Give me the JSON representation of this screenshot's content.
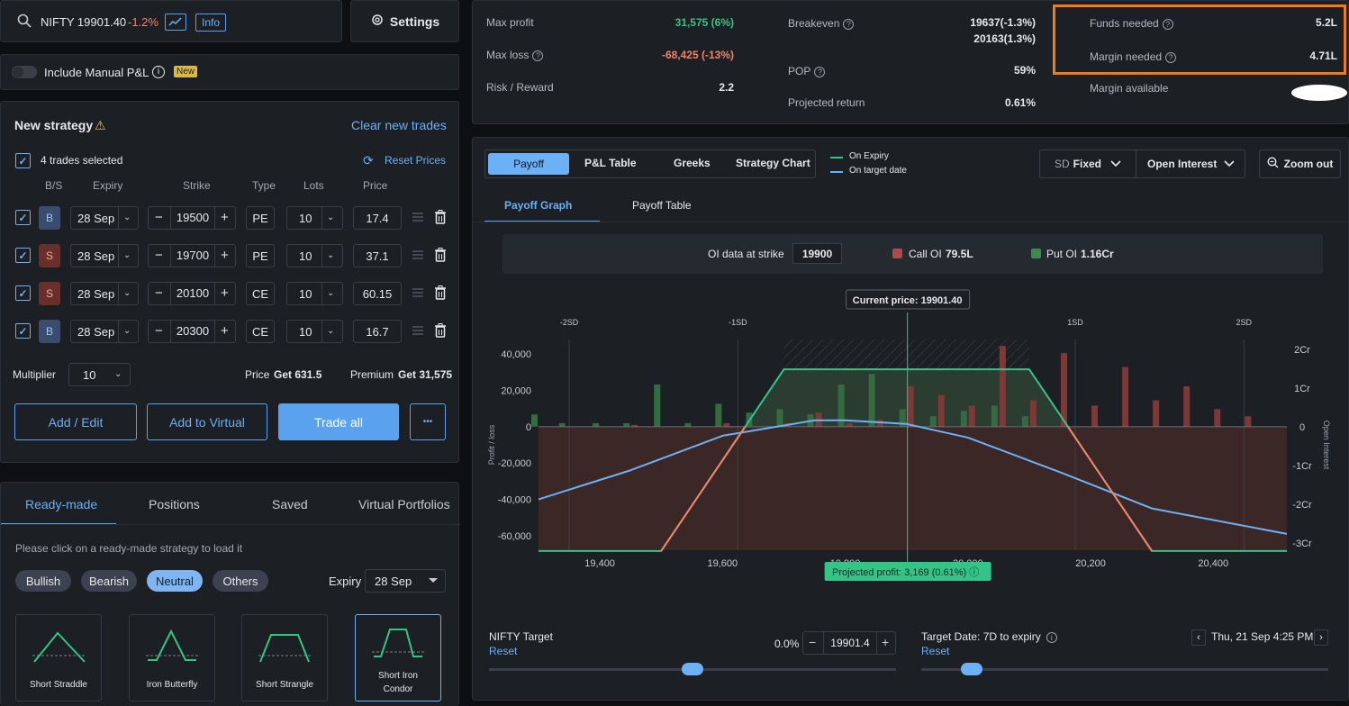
{
  "search": {
    "symbol": "NIFTY 19901.40",
    "change": "-1.2%",
    "info": "Info"
  },
  "settings": {
    "label": "Settings"
  },
  "manual_pl": {
    "label": "Include Manual P&L",
    "badge": "New"
  },
  "strategy": {
    "title": "New strategy",
    "clear": "Clear new trades",
    "selected": "4 trades selected",
    "reset_prices": "Reset Prices",
    "headers": [
      "B/S",
      "Expiry",
      "Strike",
      "Type",
      "Lots",
      "Price"
    ],
    "trades": [
      {
        "bs": "B",
        "expiry": "28 Sep",
        "strike": "19500",
        "type": "PE",
        "lots": "10",
        "price": "17.4"
      },
      {
        "bs": "S",
        "expiry": "28 Sep",
        "strike": "19700",
        "type": "PE",
        "lots": "10",
        "price": "37.1"
      },
      {
        "bs": "S",
        "expiry": "28 Sep",
        "strike": "20100",
        "type": "CE",
        "lots": "10",
        "price": "60.15"
      },
      {
        "bs": "B",
        "expiry": "28 Sep",
        "strike": "20300",
        "type": "CE",
        "lots": "10",
        "price": "16.7"
      }
    ],
    "multiplier_label": "Multiplier",
    "multiplier": "10",
    "price_label": "Price",
    "price_val": "Get 631.5",
    "premium_label": "Premium",
    "premium_val": "Get 31,575",
    "add_edit": "Add / Edit",
    "add_virtual": "Add to Virtual",
    "trade_all": "Trade all",
    "more": "•••"
  },
  "library": {
    "tabs": [
      "Ready-made",
      "Positions",
      "Saved",
      "Virtual Portfolios"
    ],
    "hint": "Please click on a ready-made strategy to load it",
    "chips": [
      "Bullish",
      "Bearish",
      "Neutral",
      "Others"
    ],
    "expiry_label": "Expiry",
    "expiry": "28 Sep",
    "cards": [
      "Short Straddle",
      "Iron Butterfly",
      "Short Strangle",
      "Short Iron Condor"
    ]
  },
  "summary": {
    "max_profit_label": "Max profit",
    "max_profit": "31,575 (6%)",
    "max_loss_label": "Max loss",
    "max_loss": "-68,425 (-13%)",
    "rr_label": "Risk / Reward",
    "rr": "2.2",
    "breakeven_label": "Breakeven",
    "breakeven1": "19637(-1.3%)",
    "breakeven2": "20163(1.3%)",
    "pop_label": "POP",
    "pop": "59%",
    "proj_label": "Projected return",
    "proj": "0.61%",
    "funds_label": "Funds needed",
    "funds": "5.2L",
    "margin_label": "Margin needed",
    "margin": "4.71L",
    "margin_avail_label": "Margin available"
  },
  "chart_tabs": {
    "tabs": [
      "Payoff",
      "P&L Table",
      "Greeks",
      "Strategy Chart"
    ],
    "legend_expiry": "On Expiry",
    "legend_target": "On target date",
    "sd": "SD",
    "sd_mode": "Fixed",
    "oi": "Open Interest",
    "zoom": "Zoom out",
    "sub_tabs": [
      "Payoff Graph",
      "Payoff Table"
    ]
  },
  "oi_bar": {
    "label": "OI data at strike",
    "strike": "19900",
    "call_label": "Call OI",
    "call": "79.5L",
    "put_label": "Put OI",
    "put": "1.16Cr"
  },
  "chart_data": {
    "type": "line",
    "current_price": "Current price: 19901.40",
    "xlim": [
      19300,
      20520
    ],
    "ylim": [
      -68000,
      48000
    ],
    "x_ticks": [
      "19,400",
      "19,600",
      "19,800",
      "20,000",
      "20,200",
      "20,400"
    ],
    "y_ticks": [
      "40,000",
      "20,000",
      "0",
      "-20,000",
      "-40,000",
      "-60,000"
    ],
    "y2_ticks": [
      "2Cr",
      "1Cr",
      "0",
      "-1Cr",
      "-2Cr",
      "-3Cr"
    ],
    "sd_labels": [
      "-2SD",
      "-1SD",
      "1SD",
      "2SD"
    ],
    "ylabel": "Profit / loss",
    "y2label": "Open Interest",
    "series": [
      {
        "name": "On Expiry",
        "x": [
          19300,
          19500,
          19700,
          20100,
          20300,
          20520
        ],
        "y": [
          -68425,
          -68425,
          31575,
          31575,
          -68425,
          -68425
        ]
      },
      {
        "name": "On target date",
        "x": [
          19300,
          19450,
          19600,
          19750,
          19800,
          19900,
          20000,
          20150,
          20300,
          20520
        ],
        "y": [
          -40000,
          -24000,
          -5000,
          3500,
          3500,
          1500,
          -6000,
          -25000,
          -45000,
          -59000
        ]
      }
    ],
    "projected": "Projected profit: 3,169 (0.61%)"
  },
  "target": {
    "label": "NIFTY Target",
    "reset": "Reset",
    "pct": "0.0%",
    "value": "19901.4",
    "date_label": "Target Date:",
    "date_days": "7D to expiry",
    "date_reset": "Reset",
    "date": "Thu, 21 Sep 4:25 PM"
  }
}
